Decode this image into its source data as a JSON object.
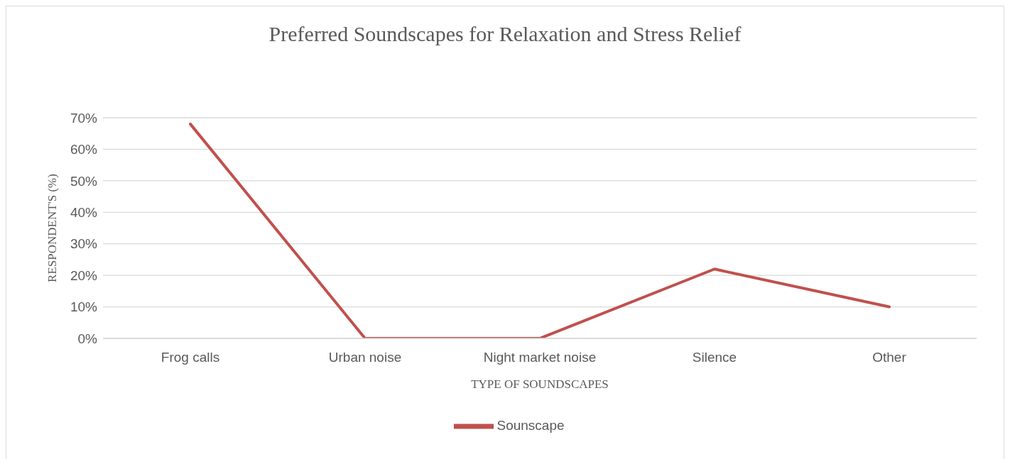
{
  "chart_data": {
    "type": "line",
    "title": "Preferred Soundscapes for Relaxation and Stress Relief",
    "xlabel": "TYPE OF SOUNDSCAPES",
    "ylabel": "RESPONDENT'S (%)",
    "categories": [
      "Frog calls",
      "Urban noise",
      "Night market noise",
      "Silence",
      "Other"
    ],
    "series": [
      {
        "name": "Sounscape",
        "color": "#c0504d",
        "values": [
          68,
          0,
          0,
          22,
          10
        ]
      }
    ],
    "ylim": [
      0,
      70
    ],
    "yticks": [
      {
        "value": 0,
        "label": "0%"
      },
      {
        "value": 10,
        "label": "10%"
      },
      {
        "value": 20,
        "label": "20%"
      },
      {
        "value": 30,
        "label": "30%"
      },
      {
        "value": 40,
        "label": "40%"
      },
      {
        "value": 50,
        "label": "50%"
      },
      {
        "value": 60,
        "label": "60%"
      },
      {
        "value": 70,
        "label": "70%"
      }
    ],
    "grid": "y",
    "legend": "bottom",
    "marker": "none",
    "line_style": "solid"
  }
}
